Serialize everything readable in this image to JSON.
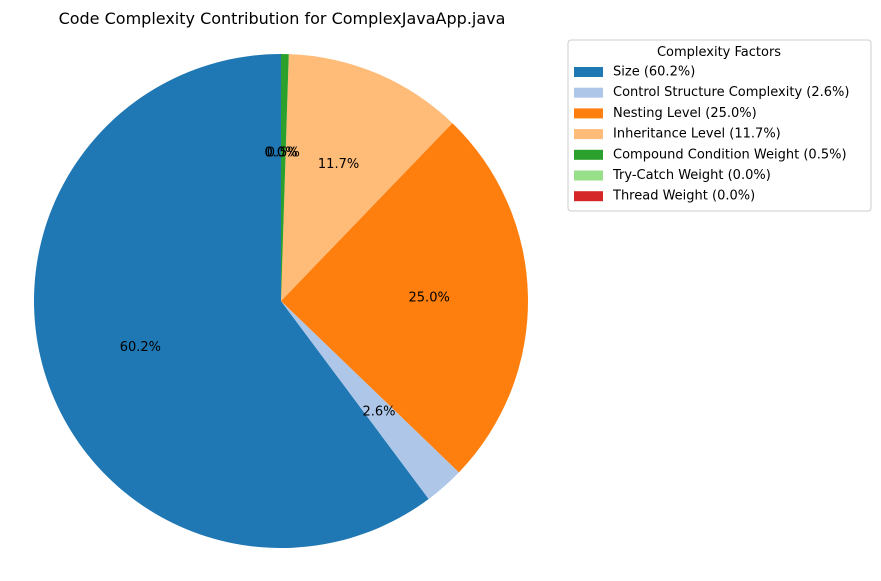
{
  "chart_data": {
    "type": "pie",
    "title": "Code Complexity Contribution for ComplexJavaApp.java",
    "legend": {
      "title": "Complexity Factors",
      "placement": "upper-right-outside"
    },
    "start_angle_deg": 90,
    "direction": "counterclockwise",
    "slices": [
      {
        "label": "Size",
        "legend_label": "Size (60.2%)",
        "value": 60.2,
        "pct_label": "60.2%",
        "color": "#1f77b4"
      },
      {
        "label": "Control Structure Complexity",
        "legend_label": "Control Structure Complexity (2.6%)",
        "value": 2.6,
        "pct_label": "2.6%",
        "color": "#aec7e8"
      },
      {
        "label": "Nesting Level",
        "legend_label": "Nesting Level (25.0%)",
        "value": 25.0,
        "pct_label": "25.0%",
        "color": "#ff7f0e"
      },
      {
        "label": "Inheritance Level",
        "legend_label": "Inheritance Level (11.7%)",
        "value": 11.7,
        "pct_label": "11.7%",
        "color": "#ffbb78"
      },
      {
        "label": "Compound Condition Weight",
        "legend_label": "Compound Condition Weight (0.5%)",
        "value": 0.5,
        "pct_label": "0.5%",
        "color": "#2ca02c"
      },
      {
        "label": "Try-Catch Weight",
        "legend_label": "Try-Catch Weight (0.0%)",
        "value": 0.0,
        "pct_label": "0.0%",
        "color": "#98df8a"
      },
      {
        "label": "Thread Weight",
        "legend_label": "Thread Weight (0.0%)",
        "value": 0.0,
        "pct_label": "0.0%",
        "color": "#d62728"
      }
    ]
  }
}
